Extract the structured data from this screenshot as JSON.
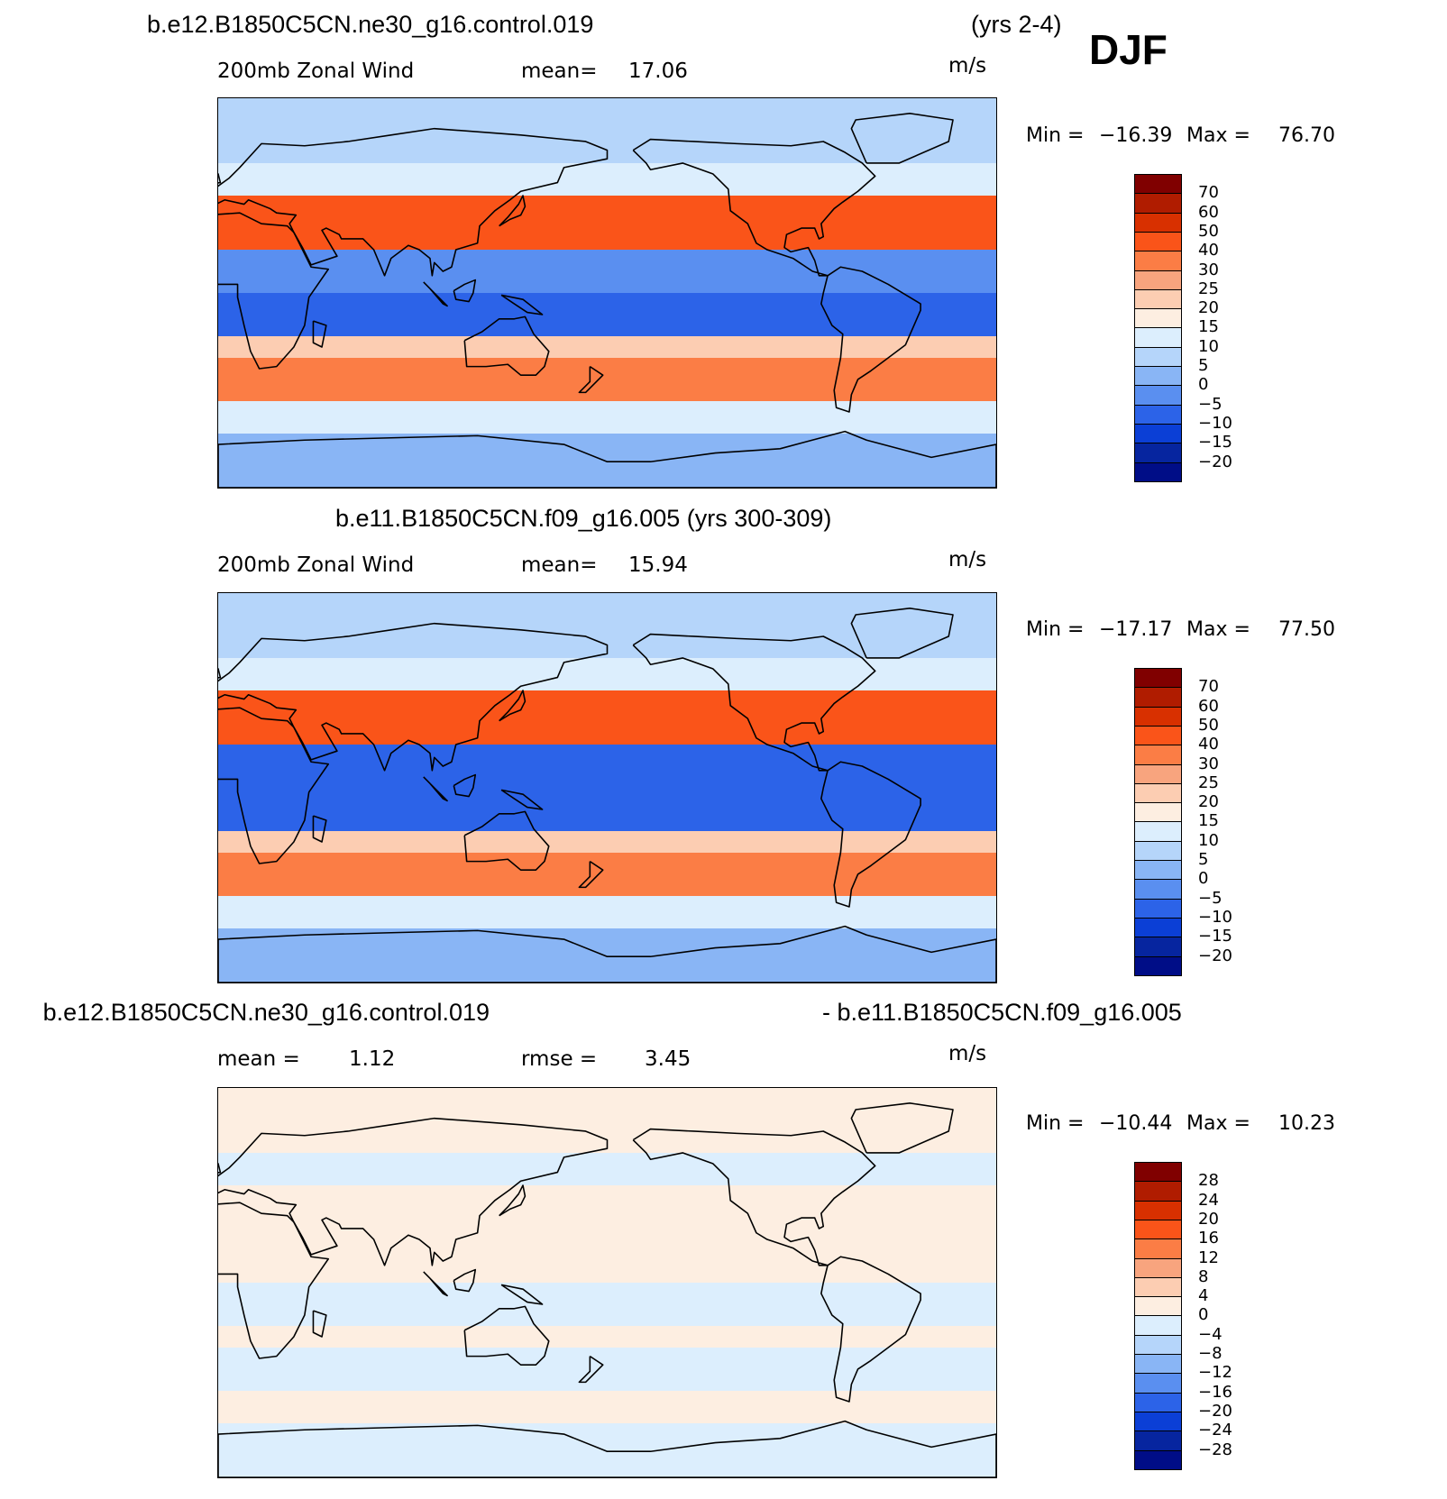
{
  "season": "DJF",
  "units": "m/s",
  "chart_data": [
    {
      "type": "heatmap",
      "title": "b.e12.B1850C5CN.ne30_g16.control.019",
      "years": "(yrs 2-4)",
      "variable": "200mb Zonal Wind",
      "stat_label": "mean=",
      "stat_value": "17.06",
      "min_label": "Min =",
      "min": "−16.39",
      "max_label": "Max =",
      "max": "76.70",
      "projection": "cylindrical equidistant, centered at 180",
      "colorbar": {
        "levels": [
          "70",
          "60",
          "50",
          "40",
          "30",
          "25",
          "20",
          "15",
          "10",
          "5",
          "0",
          "−5",
          "−10",
          "−15",
          "−20"
        ],
        "colors": [
          "#800000",
          "#b01c00",
          "#d83000",
          "#fa5419",
          "#fb7d45",
          "#f8a47e",
          "#fccdb2",
          "#fdeee1",
          "#dceefd",
          "#b5d5fa",
          "#89b5f5",
          "#5a8ff0",
          "#2c63e8",
          "#0b3fd6",
          "#06259f",
          "#000d87"
        ]
      },
      "bands": [
        {
          "lat_from": 90,
          "lat_to": 60,
          "value": 8
        },
        {
          "lat_from": 60,
          "lat_to": 45,
          "value": 12
        },
        {
          "lat_from": 45,
          "lat_to": 20,
          "value": 45
        },
        {
          "lat_from": 20,
          "lat_to": 0,
          "value": -5
        },
        {
          "lat_from": 0,
          "lat_to": -20,
          "value": -8
        },
        {
          "lat_from": -20,
          "lat_to": -30,
          "value": 20
        },
        {
          "lat_from": -30,
          "lat_to": -50,
          "value": 35
        },
        {
          "lat_from": -50,
          "lat_to": -65,
          "value": 12
        },
        {
          "lat_from": -65,
          "lat_to": -90,
          "value": 2
        }
      ]
    },
    {
      "type": "heatmap",
      "title": "b.e11.B1850C5CN.f09_g16.005 (yrs 300-309)",
      "variable": "200mb Zonal Wind",
      "stat_label": "mean=",
      "stat_value": "15.94",
      "min_label": "Min =",
      "min": "−17.17",
      "max_label": "Max =",
      "max": "77.50",
      "projection": "cylindrical equidistant, centered at 180",
      "colorbar": {
        "levels": [
          "70",
          "60",
          "50",
          "40",
          "30",
          "25",
          "20",
          "15",
          "10",
          "5",
          "0",
          "−5",
          "−10",
          "−15",
          "−20"
        ],
        "colors": [
          "#800000",
          "#b01c00",
          "#d83000",
          "#fa5419",
          "#fb7d45",
          "#f8a47e",
          "#fccdb2",
          "#fdeee1",
          "#dceefd",
          "#b5d5fa",
          "#89b5f5",
          "#5a8ff0",
          "#2c63e8",
          "#0b3fd6",
          "#06259f",
          "#000d87"
        ]
      },
      "bands": [
        {
          "lat_from": 90,
          "lat_to": 60,
          "value": 7
        },
        {
          "lat_from": 60,
          "lat_to": 45,
          "value": 12
        },
        {
          "lat_from": 45,
          "lat_to": 20,
          "value": 48
        },
        {
          "lat_from": 20,
          "lat_to": 0,
          "value": -8
        },
        {
          "lat_from": 0,
          "lat_to": -20,
          "value": -10
        },
        {
          "lat_from": -20,
          "lat_to": -30,
          "value": 20
        },
        {
          "lat_from": -30,
          "lat_to": -50,
          "value": 35
        },
        {
          "lat_from": -50,
          "lat_to": -65,
          "value": 12
        },
        {
          "lat_from": -65,
          "lat_to": -90,
          "value": 2
        }
      ]
    },
    {
      "type": "heatmap",
      "title_left": "b.e12.B1850C5CN.ne30_g16.control.019",
      "title_right": "- b.e11.B1850C5CN.f09_g16.005",
      "stat_label": "mean =",
      "stat_value": "1.12",
      "stat2_label": "rmse =",
      "stat2_value": "3.45",
      "min_label": "Min =",
      "min": "−10.44",
      "max_label": "Max =",
      "max": "10.23",
      "projection": "cylindrical equidistant, centered at 180",
      "colorbar": {
        "levels": [
          "28",
          "24",
          "20",
          "16",
          "12",
          "8",
          "4",
          "0",
          "−4",
          "−8",
          "−12",
          "−16",
          "−20",
          "−24",
          "−28"
        ],
        "colors": [
          "#800000",
          "#b01c00",
          "#d83000",
          "#fa5419",
          "#fb7d45",
          "#f8a47e",
          "#fccdb2",
          "#fdeee1",
          "#dceefd",
          "#b5d5fa",
          "#89b5f5",
          "#5a8ff0",
          "#2c63e8",
          "#0b3fd6",
          "#06259f",
          "#000d87"
        ]
      },
      "bands": [
        {
          "lat_from": 90,
          "lat_to": 60,
          "value": 1
        },
        {
          "lat_from": 60,
          "lat_to": 45,
          "value": -1
        },
        {
          "lat_from": 45,
          "lat_to": 20,
          "value": 2
        },
        {
          "lat_from": 20,
          "lat_to": 0,
          "value": 3
        },
        {
          "lat_from": 0,
          "lat_to": -20,
          "value": -1
        },
        {
          "lat_from": -20,
          "lat_to": -30,
          "value": 2
        },
        {
          "lat_from": -30,
          "lat_to": -50,
          "value": -1
        },
        {
          "lat_from": -50,
          "lat_to": -65,
          "value": 1
        },
        {
          "lat_from": -65,
          "lat_to": -90,
          "value": -1
        }
      ]
    }
  ]
}
